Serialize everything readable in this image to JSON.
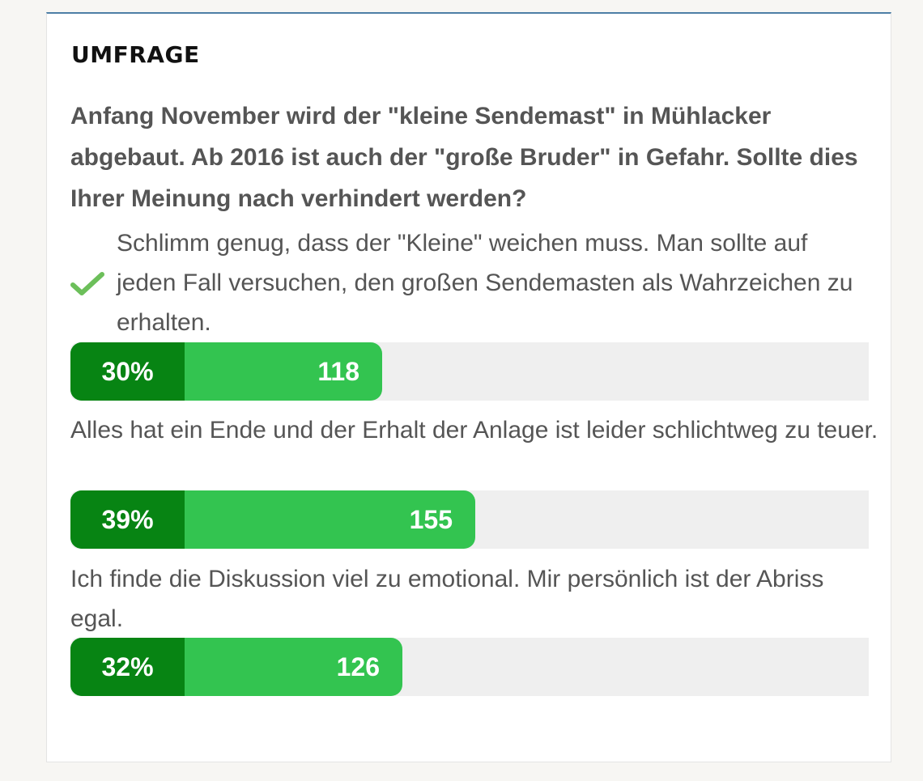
{
  "poll": {
    "title": "UMFRAGE",
    "question": "Anfang November wird der \"kleine Sendemast\" in Mühlacker abgebaut. Ab 2016 ist auch der \"große Bruder\" in Gefahr. Sollte dies Ihrer Meinung nach verhindert werden?",
    "answers": [
      {
        "text": "Schlimm genug, dass der \"Kleine\" weichen muss. Man sollte auf jeden Fall versuchen, den großen Sendemasten als Wahrzeichen zu erhalten.",
        "percent_label": "30%",
        "votes": "118",
        "share": 0.3,
        "selected": true,
        "icon": "checkmark-icon"
      },
      {
        "text": "Alles hat ein Ende und der Erhalt der Anlage ist leider schlichtweg zu teuer.",
        "percent_label": "39%",
        "votes": "155",
        "share": 0.39,
        "selected": false
      },
      {
        "text": "Ich finde die Diskussion viel zu emotional. Mir persönlich ist der Abriss egal.",
        "percent_label": "32%",
        "votes": "126",
        "share": 0.32,
        "selected": false
      }
    ]
  },
  "colors": {
    "bar_dark": "#078413",
    "bar_light": "#33c450",
    "track": "#efefef",
    "check": "#6cbf5a",
    "header_rule": "#4d7fa6"
  }
}
